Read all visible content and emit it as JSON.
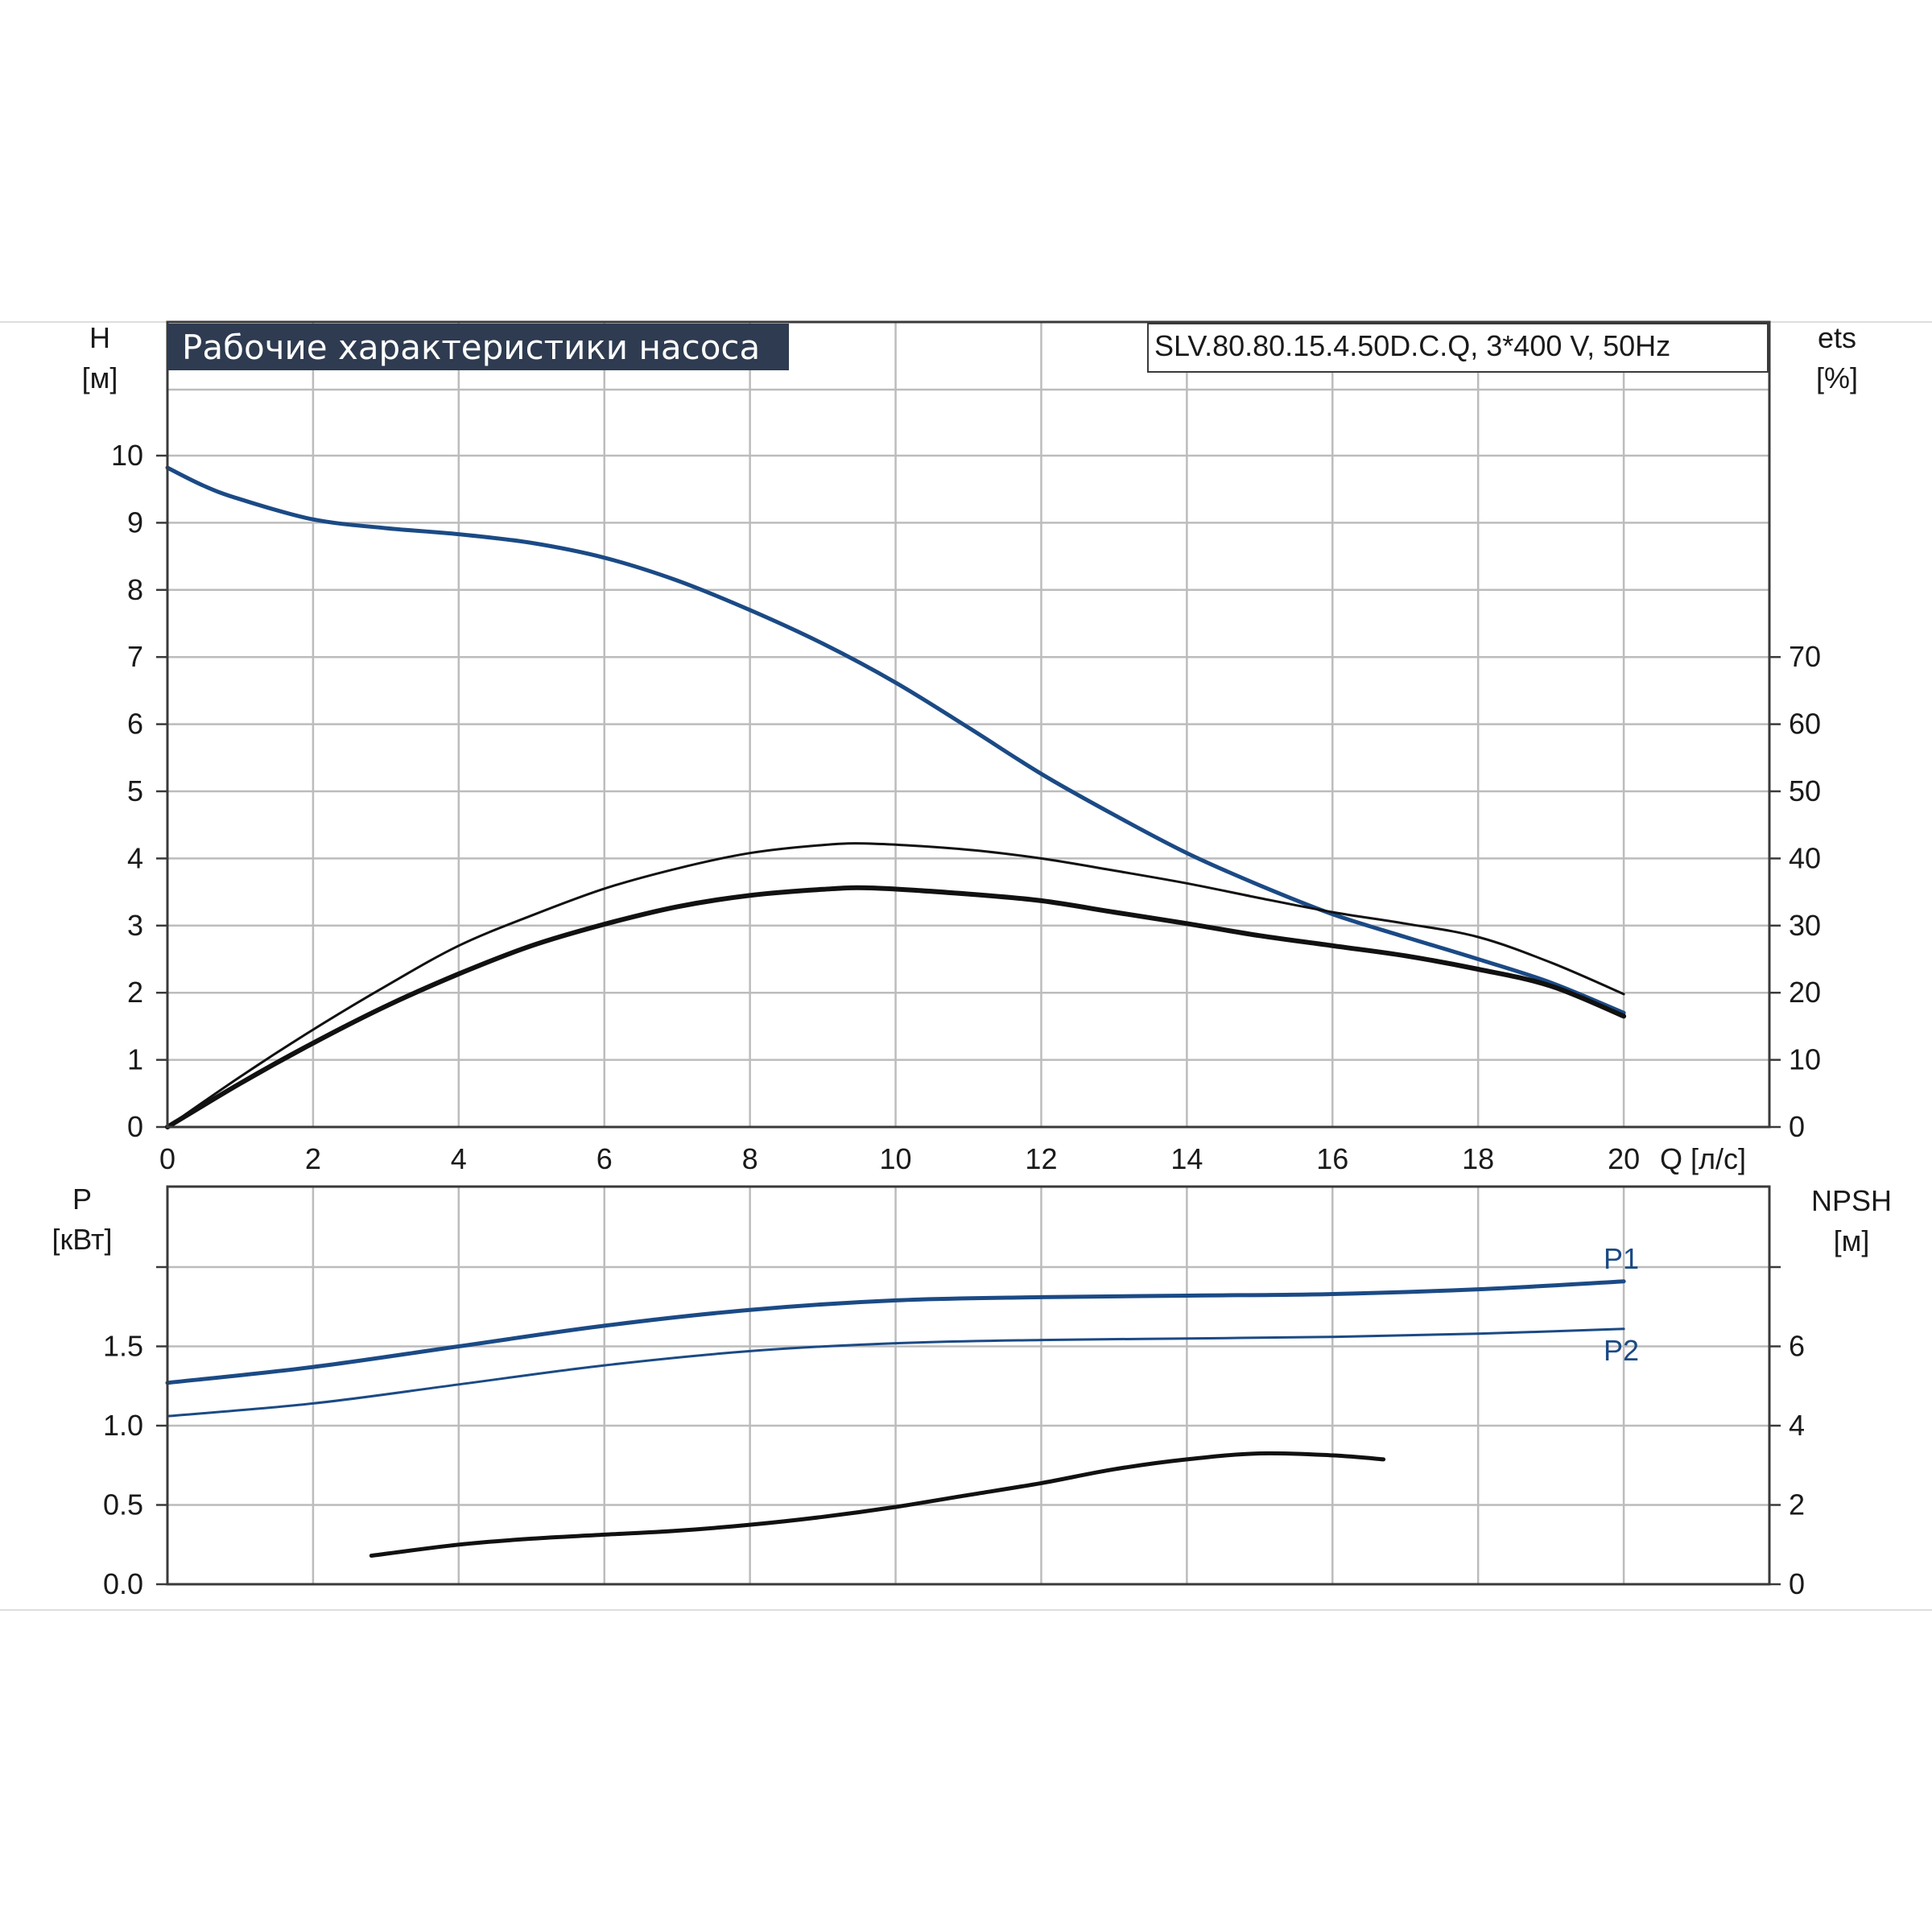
{
  "header": {
    "title": "Рабочие характеристики насоса",
    "model": "SLV.80.80.15.4.50D.C.Q, 3*400 V, 50Hz"
  },
  "colors": {
    "head_curve": "#1b4a85",
    "power_curve": "#1b4a85",
    "efficiency_curve": "#111111",
    "npsh_curve": "#111111",
    "title_background": "#2e3b50",
    "grid": "#bcbcbc"
  },
  "chart_data": [
    {
      "type": "line",
      "panel": "top",
      "title": "Рабочие характеристики насоса",
      "xlabel": "Q [л/с]",
      "ylabel_left": [
        "H",
        "[м]"
      ],
      "ylabel_right": [
        "ets",
        "[%]"
      ],
      "xlim": [
        0,
        22
      ],
      "ylim_left": [
        0,
        10
      ],
      "ylim_right": [
        0,
        70
      ],
      "x_ticks": [
        "0",
        "2",
        "4",
        "6",
        "8",
        "10",
        "12",
        "14",
        "16",
        "18",
        "20"
      ],
      "y_ticks_left": [
        "0",
        "1",
        "2",
        "3",
        "4",
        "5",
        "6",
        "7",
        "8",
        "9",
        "10"
      ],
      "y_ticks_right": [
        "0",
        "10",
        "20",
        "30",
        "40",
        "50",
        "60",
        "70"
      ],
      "grid": true,
      "series": [
        {
          "axis": "left",
          "x": [
            0,
            0.5,
            1,
            2,
            3,
            4,
            5,
            6,
            7,
            8,
            9,
            10,
            11,
            12,
            13,
            14,
            15,
            16,
            17,
            18,
            19,
            20
          ],
          "y": [
            9.82,
            9.55,
            9.35,
            9.05,
            8.92,
            8.83,
            8.7,
            8.48,
            8.14,
            7.7,
            7.2,
            6.62,
            5.95,
            5.26,
            4.65,
            4.08,
            3.6,
            3.17,
            2.83,
            2.5,
            2.15,
            1.7
          ]
        },
        {
          "axis": "right",
          "x": [
            0,
            1,
            2,
            3,
            4,
            5,
            6,
            7,
            8,
            9,
            9.7,
            11,
            12,
            13,
            14,
            15,
            16,
            17,
            18,
            19,
            20
          ],
          "y": [
            0,
            7.5,
            14.5,
            21,
            27,
            31.5,
            35.5,
            38.5,
            40.8,
            42,
            42.2,
            41.3,
            40,
            38.2,
            36.3,
            34.1,
            32,
            30.3,
            28.3,
            24.5,
            19.8
          ]
        },
        {
          "axis": "right",
          "x": [
            0,
            1,
            2,
            3,
            4,
            5,
            6,
            7,
            8,
            9,
            9.7,
            11,
            12,
            13,
            14,
            15,
            16,
            17,
            18,
            19,
            20
          ],
          "y": [
            0,
            6.5,
            12.5,
            18,
            22.8,
            27,
            30.2,
            32.8,
            34.5,
            35.4,
            35.6,
            34.7,
            33.7,
            32,
            30.3,
            28.5,
            27,
            25.5,
            23.5,
            21,
            16.5
          ]
        }
      ]
    },
    {
      "type": "line",
      "panel": "bottom",
      "ylabel_left": [
        "P",
        "[кВт]"
      ],
      "ylabel_right": [
        "NPSH",
        "[м]"
      ],
      "xlim": [
        0,
        22
      ],
      "ylim_left": [
        0,
        2
      ],
      "ylim_right": [
        0,
        8
      ],
      "y_ticks_left": [
        "0.0",
        "0.5",
        "1.0",
        "1.5"
      ],
      "y_ticks_right": [
        "0",
        "2",
        "4",
        "6"
      ],
      "grid": true,
      "series": [
        {
          "name": "P1",
          "axis": "left",
          "x": [
            0,
            2,
            4,
            6,
            8,
            10,
            12,
            14,
            16,
            18,
            20
          ],
          "y": [
            1.27,
            1.37,
            1.5,
            1.63,
            1.73,
            1.79,
            1.81,
            1.82,
            1.83,
            1.86,
            1.91
          ]
        },
        {
          "name": "P2",
          "axis": "left",
          "x": [
            0,
            2,
            4,
            6,
            8,
            10,
            12,
            14,
            16,
            18,
            20
          ],
          "y": [
            1.06,
            1.14,
            1.26,
            1.38,
            1.47,
            1.52,
            1.54,
            1.55,
            1.56,
            1.58,
            1.61
          ]
        },
        {
          "axis": "right",
          "x": [
            2.8,
            4,
            5,
            6,
            7,
            8,
            9,
            10,
            11,
            12,
            13,
            14,
            15,
            16,
            16.7
          ],
          "y": [
            0.72,
            1.0,
            1.15,
            1.25,
            1.35,
            1.5,
            1.7,
            1.95,
            2.25,
            2.55,
            2.9,
            3.15,
            3.3,
            3.25,
            3.15
          ]
        }
      ]
    }
  ]
}
